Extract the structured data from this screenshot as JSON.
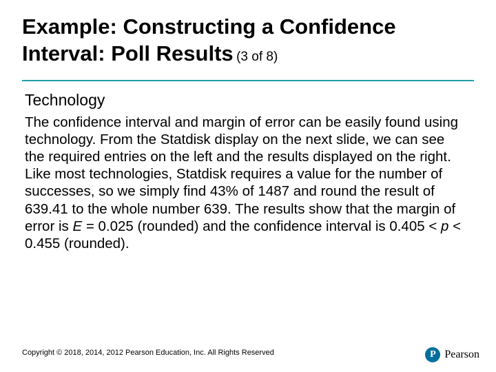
{
  "title": {
    "main": "Example: Constructing a Confidence Interval: Poll Results",
    "counter": "(3 of 8)",
    "title_color": "#000000",
    "title_fontsize": 31,
    "counter_fontsize": 19,
    "rule_color": "#1f9ea8"
  },
  "subhead": {
    "text": "Technology",
    "fontsize": 23
  },
  "body": {
    "part1": "The confidence interval and margin of error can be easily found using technology. From the Statdisk display on the next slide, we can see the required entries on the left and the results displayed on the right. Like most technologies, Statdisk requires a value for the number of successes, so we simply find 43% of 1487 and round the result of 639.41 to the whole number 639. The results show that the margin of error is ",
    "var1": "E",
    "part2": " = 0.025 (rounded) and the confidence interval is 0.405 < ",
    "var2": "p",
    "part3": " < 0.455 (rounded).",
    "fontsize": 20.5,
    "text_color": "#000000"
  },
  "footer": {
    "text": "Copyright © 2018, 2014, 2012 Pearson Education, Inc. All Rights Reserved",
    "fontsize": 11
  },
  "brand": {
    "name": "Pearson",
    "logo_bg": "#006f9e",
    "logo_letter": "P",
    "brand_fontsize": 16
  },
  "slide_bg": "#ffffff"
}
